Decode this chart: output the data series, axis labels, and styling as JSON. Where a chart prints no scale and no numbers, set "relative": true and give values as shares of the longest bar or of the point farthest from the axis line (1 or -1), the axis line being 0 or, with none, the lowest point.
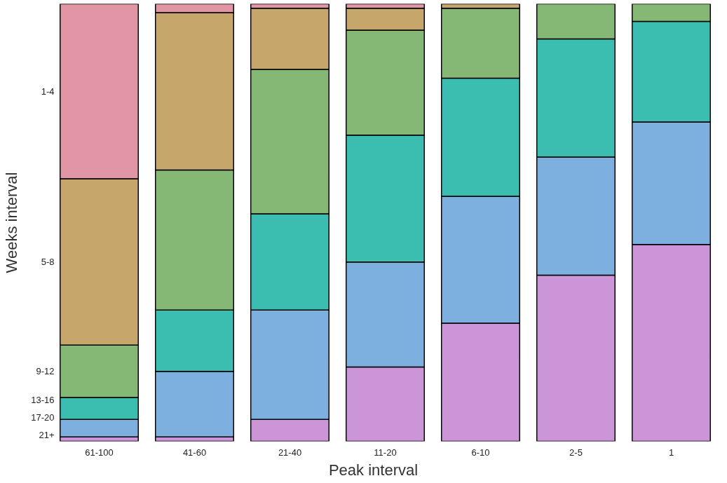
{
  "chart_data": {
    "type": "bar",
    "stacked": true,
    "relative": true,
    "xlabel": "Peak interval",
    "ylabel": "Weeks interval",
    "categories": [
      "61-100",
      "41-60",
      "21-40",
      "11-20",
      "6-10",
      "2-5",
      "1"
    ],
    "series": [
      {
        "name": "21+",
        "color": "#cc95d8",
        "values": [
          0.01,
          0.01,
          0.05,
          0.17,
          0.27,
          0.38,
          0.45
        ]
      },
      {
        "name": "17-20",
        "color": "#7eb0df",
        "values": [
          0.04,
          0.15,
          0.25,
          0.24,
          0.29,
          0.27,
          0.28
        ]
      },
      {
        "name": "13-16",
        "color": "#3bbdb0",
        "values": [
          0.05,
          0.14,
          0.22,
          0.29,
          0.27,
          0.27,
          0.23
        ]
      },
      {
        "name": "9-12",
        "color": "#86b875",
        "values": [
          0.12,
          0.32,
          0.33,
          0.24,
          0.16,
          0.08,
          0.04
        ]
      },
      {
        "name": "5-8",
        "color": "#c7a66b",
        "values": [
          0.38,
          0.36,
          0.14,
          0.05,
          0.01,
          0.0,
          0.0
        ]
      },
      {
        "name": "1-4",
        "color": "#e195a5",
        "values": [
          0.4,
          0.02,
          0.01,
          0.01,
          0.0,
          0.0,
          0.0
        ]
      }
    ]
  }
}
